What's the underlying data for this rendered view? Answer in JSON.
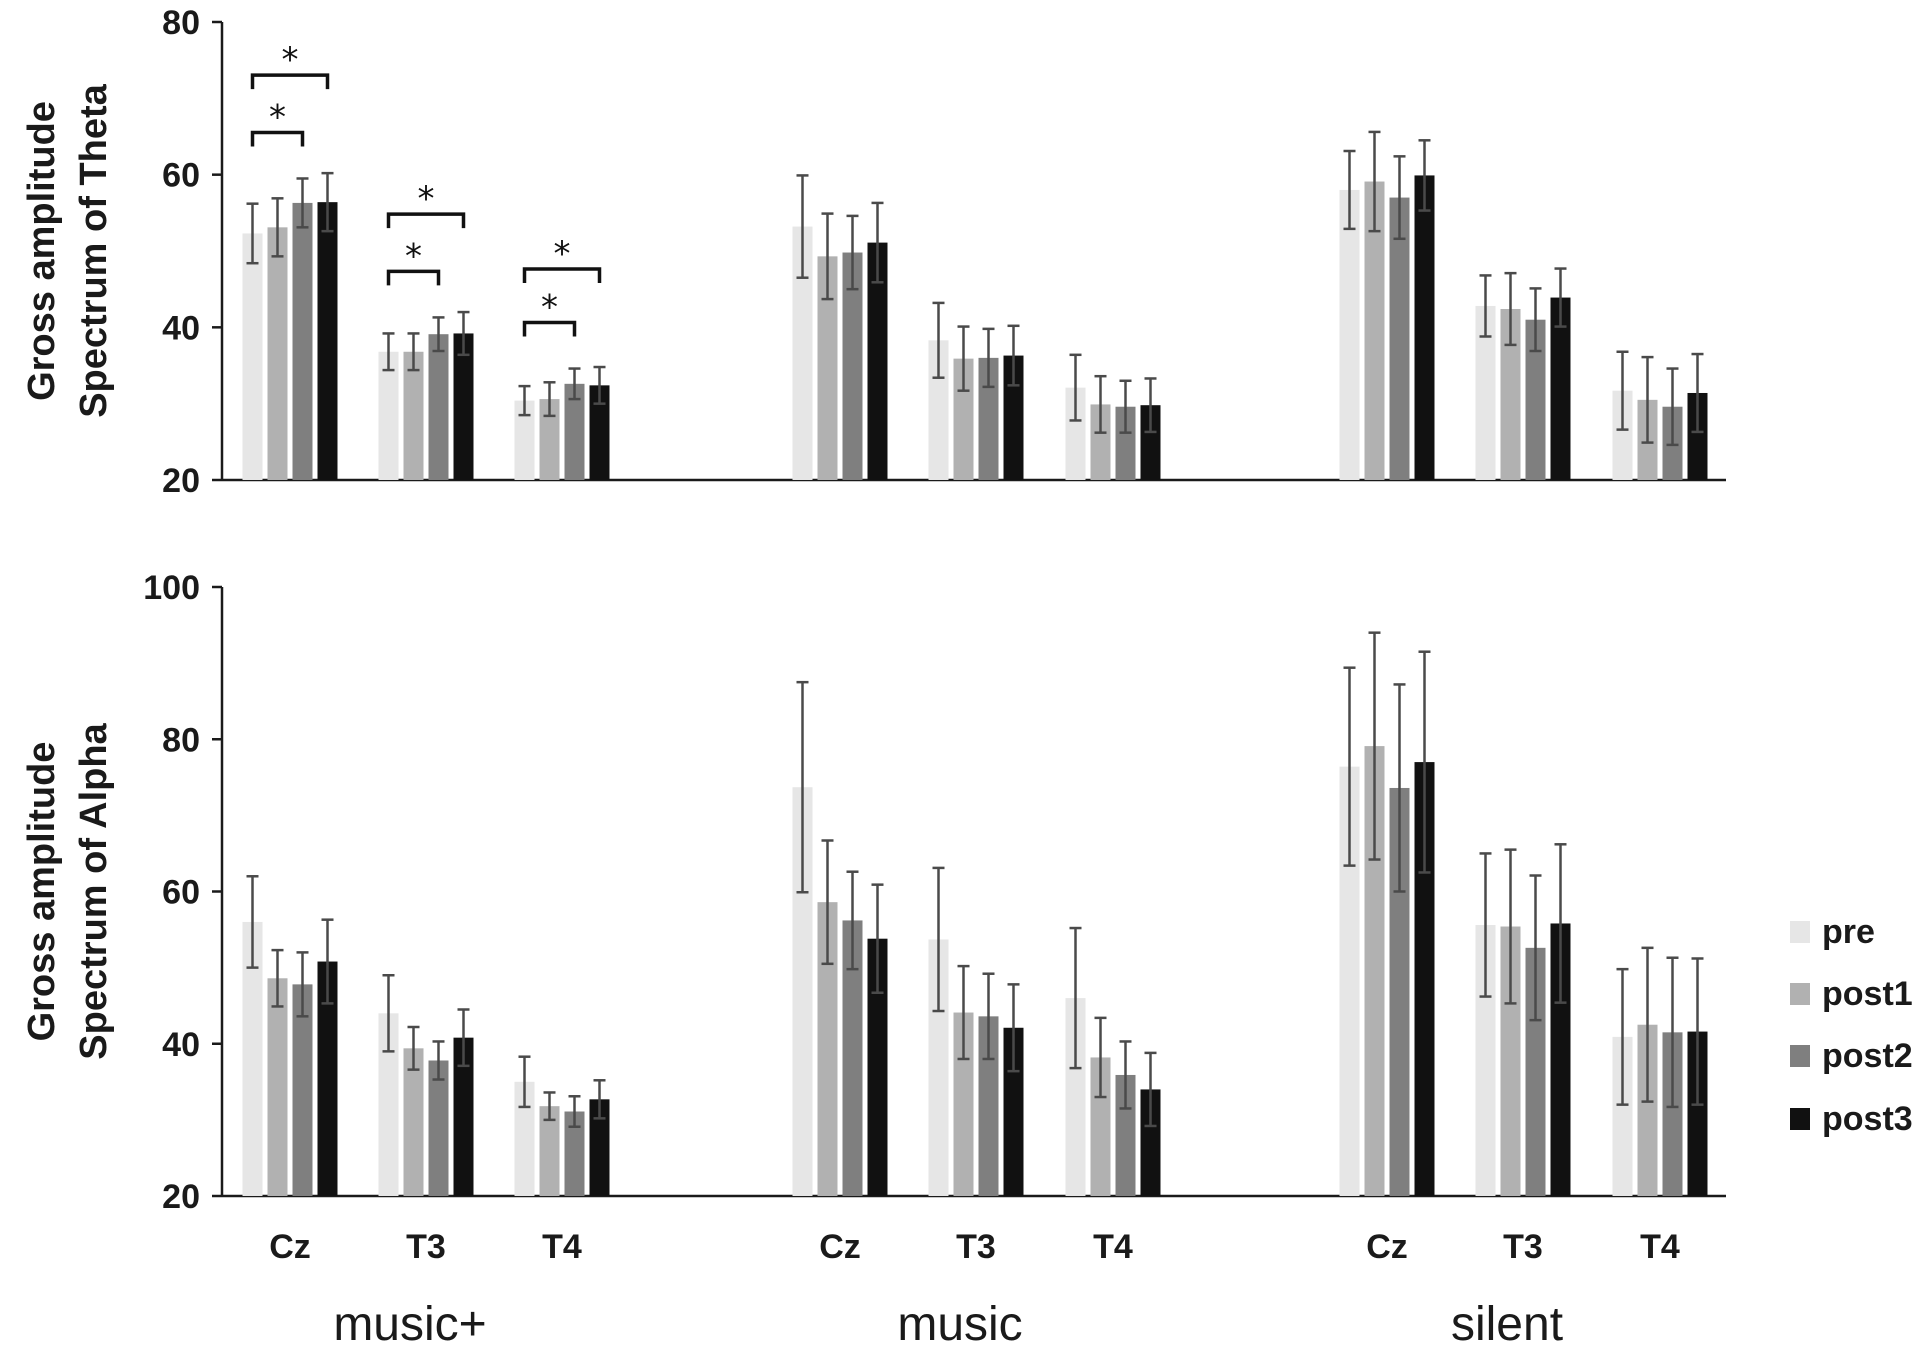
{
  "chart_data": {
    "type": "bar",
    "groups": [
      "music+",
      "music",
      "silent"
    ],
    "electrodes": [
      "Cz",
      "T3",
      "T4"
    ],
    "legend": {
      "position": "right",
      "entries": [
        {
          "name": "pre",
          "color": "#e6e6e6"
        },
        {
          "name": "post1",
          "color": "#b1b1b1"
        },
        {
          "name": "post2",
          "color": "#7f7f7f"
        },
        {
          "name": "post3",
          "color": "#111111"
        }
      ]
    },
    "panels": [
      {
        "id": "theta",
        "ylabel_lines": [
          "Gross amplitude",
          "Spectrum of Theta"
        ],
        "ylim": [
          20,
          80
        ],
        "yticks": [
          20,
          40,
          60,
          80
        ],
        "series": [
          {
            "name": "pre",
            "values": [
              52.3,
              36.8,
              30.4,
              53.2,
              38.3,
              32.1,
              58.0,
              42.8,
              31.7
            ],
            "errors": [
              3.9,
              2.4,
              1.9,
              6.7,
              4.9,
              4.3,
              5.1,
              4.0,
              5.1
            ]
          },
          {
            "name": "post1",
            "values": [
              53.1,
              36.8,
              30.6,
              49.3,
              35.9,
              29.9,
              59.1,
              42.4,
              30.5
            ],
            "errors": [
              3.8,
              2.4,
              2.2,
              5.6,
              4.2,
              3.7,
              6.5,
              4.7,
              5.6
            ]
          },
          {
            "name": "post2",
            "values": [
              56.3,
              39.1,
              32.6,
              49.8,
              36.0,
              29.6,
              57.0,
              41.0,
              29.6
            ],
            "errors": [
              3.2,
              2.2,
              2.0,
              4.8,
              3.8,
              3.4,
              5.4,
              4.1,
              5.0
            ]
          },
          {
            "name": "post3",
            "values": [
              56.4,
              39.2,
              32.4,
              51.1,
              36.3,
              29.8,
              59.9,
              43.9,
              31.4
            ],
            "errors": [
              3.8,
              2.8,
              2.4,
              5.2,
              3.9,
              3.5,
              4.6,
              3.8,
              5.1
            ]
          }
        ],
        "significance": [
          {
            "electrode_index": 0,
            "from": "pre",
            "to": "post2",
            "label": "*"
          },
          {
            "electrode_index": 0,
            "from": "pre",
            "to": "post3",
            "label": "*"
          },
          {
            "electrode_index": 1,
            "from": "pre",
            "to": "post2",
            "label": "*"
          },
          {
            "electrode_index": 1,
            "from": "pre",
            "to": "post3",
            "label": "*"
          },
          {
            "electrode_index": 2,
            "from": "pre",
            "to": "post2",
            "label": "*"
          },
          {
            "electrode_index": 2,
            "from": "pre",
            "to": "post3",
            "label": "*"
          }
        ]
      },
      {
        "id": "alpha",
        "ylabel_lines": [
          "Gross amplitude",
          "Spectrum of Alpha"
        ],
        "ylim": [
          20,
          100
        ],
        "yticks": [
          20,
          40,
          60,
          80,
          100
        ],
        "series": [
          {
            "name": "pre",
            "values": [
              56.0,
              44.0,
              35.0,
              73.7,
              53.7,
              46.0,
              76.4,
              55.6,
              40.9
            ],
            "errors": [
              6.0,
              5.0,
              3.3,
              13.8,
              9.4,
              9.2,
              13.0,
              9.4,
              8.9
            ]
          },
          {
            "name": "post1",
            "values": [
              48.6,
              39.4,
              31.8,
              58.6,
              44.1,
              38.2,
              79.1,
              55.4,
              42.5
            ],
            "errors": [
              3.7,
              2.8,
              1.8,
              8.1,
              6.1,
              5.2,
              14.9,
              10.1,
              10.1
            ]
          },
          {
            "name": "post2",
            "values": [
              47.8,
              37.8,
              31.1,
              56.2,
              43.6,
              35.9,
              73.6,
              52.6,
              41.5
            ],
            "errors": [
              4.2,
              2.5,
              2.0,
              6.4,
              5.6,
              4.4,
              13.6,
              9.5,
              9.8
            ]
          },
          {
            "name": "post3",
            "values": [
              50.8,
              40.8,
              32.7,
              53.8,
              42.1,
              34.0,
              77.0,
              55.8,
              41.6
            ],
            "errors": [
              5.5,
              3.7,
              2.5,
              7.1,
              5.7,
              4.8,
              14.5,
              10.4,
              9.6
            ]
          }
        ],
        "significance": []
      }
    ]
  }
}
